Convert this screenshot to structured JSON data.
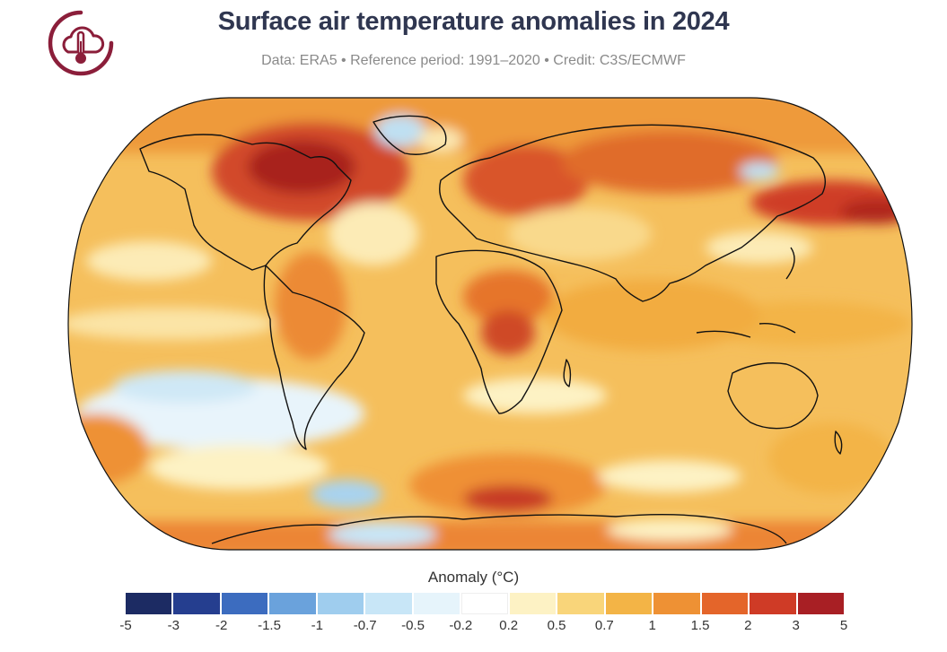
{
  "header": {
    "title": "Surface air temperature anomalies in 2024",
    "subtitle": "Data: ERA5 • Reference period: 1991–2020 • Credit: C3S/ECMWF",
    "logo_icon": "cloud-thermometer-icon",
    "logo_color": "#8b1e3a"
  },
  "map": {
    "projection": "robinson",
    "ocean_base_color": "#f6c76a",
    "coastline_color": "#111111"
  },
  "legend": {
    "title": "Anomaly (°C)",
    "tick_labels": [
      "-5",
      "-3",
      "-2",
      "-1.5",
      "-1",
      "-0.7",
      "-0.5",
      "-0.2",
      "0.2",
      "0.5",
      "0.7",
      "1",
      "1.5",
      "2",
      "3",
      "5"
    ],
    "colors": [
      "#1c2b63",
      "#253e8f",
      "#3c6cbf",
      "#6aa2dc",
      "#9fcdee",
      "#c8e6f7",
      "#e6f4fb",
      "#ffffff",
      "#fdf2c4",
      "#f9d57a",
      "#f3b446",
      "#ee9134",
      "#e4652a",
      "#cf3b26",
      "#a81f24"
    ]
  }
}
